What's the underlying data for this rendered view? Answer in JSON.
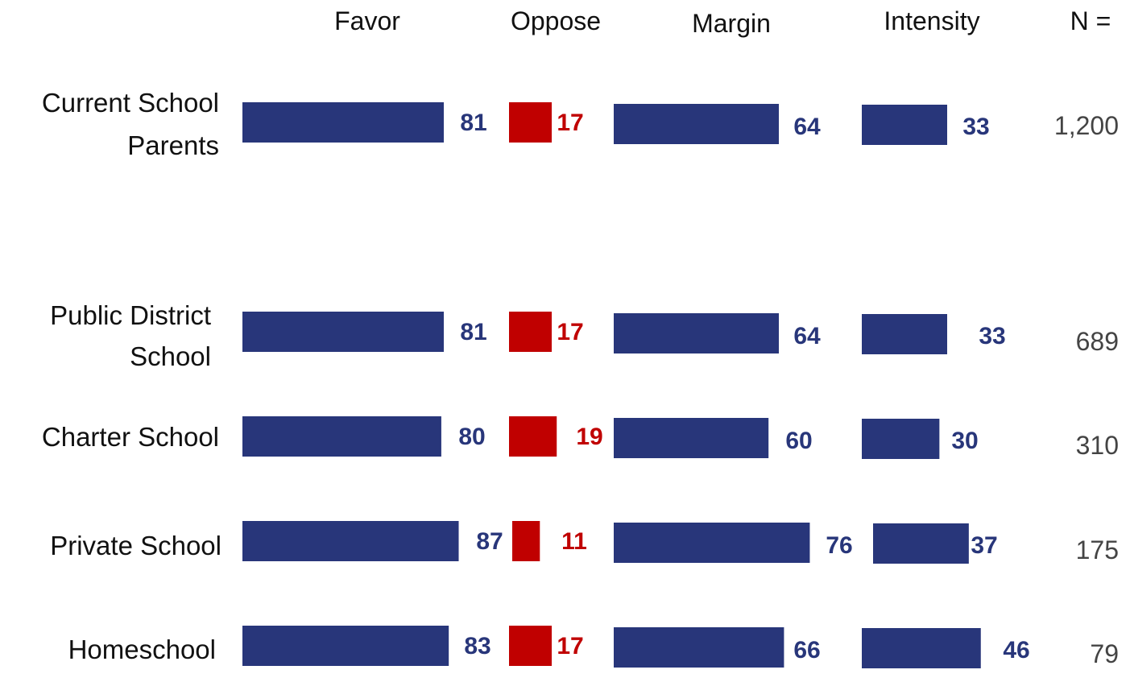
{
  "chart_data": {
    "type": "bar",
    "columns": [
      "Favor",
      "Oppose",
      "Margin",
      "Intensity",
      "N ="
    ],
    "categories": [
      [
        "Current School",
        "Parents"
      ],
      [
        "Public District",
        "School"
      ],
      [
        "Charter School"
      ],
      [
        "Private School"
      ],
      [
        "Homeschool"
      ]
    ],
    "series": [
      {
        "name": "Favor",
        "values": [
          81,
          81,
          80,
          87,
          83
        ],
        "color": "#28367A"
      },
      {
        "name": "Oppose",
        "values": [
          17,
          17,
          19,
          11,
          17
        ],
        "color": "#C00000"
      },
      {
        "name": "Margin",
        "values": [
          64,
          64,
          60,
          76,
          66
        ],
        "color": "#28367A"
      },
      {
        "name": "Intensity",
        "values": [
          33,
          33,
          30,
          37,
          46
        ],
        "color": "#28367A"
      }
    ],
    "n_values": [
      "1,200",
      "689",
      "310",
      "175",
      "79"
    ],
    "colors": {
      "positive": "#28367A",
      "negative": "#C00000",
      "text": "#111111",
      "n_text": "#444444"
    }
  }
}
